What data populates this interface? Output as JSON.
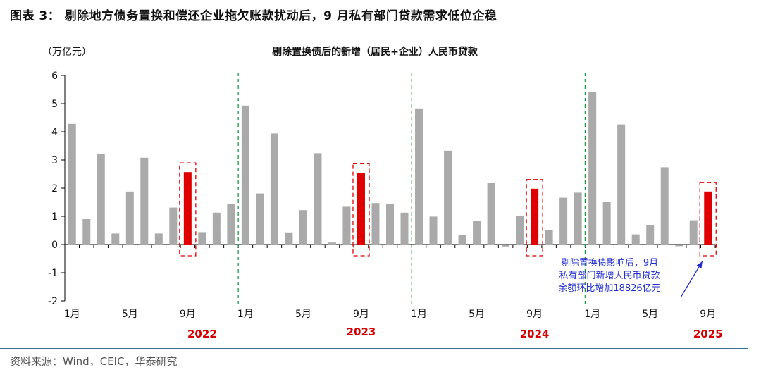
{
  "header": {
    "figure_title": "图表 3：   剔除地方债务置换和偿还企业拖欠账款扰动后，9 月私有部门贷款需求低位企稳"
  },
  "footer": {
    "source": "资料来源：Wind，CEIC，华泰研究"
  },
  "chart_data": {
    "type": "bar",
    "title": "剔除置换债后的新增（居民+企业）人民币贷款",
    "unit_label": "（万亿元）",
    "ylim": [
      -2,
      6
    ],
    "yticks": [
      -2,
      -1,
      0,
      1,
      2,
      3,
      4,
      5,
      6
    ],
    "grid": false,
    "categories": [
      "2022-01",
      "2022-02",
      "2022-03",
      "2022-04",
      "2022-05",
      "2022-06",
      "2022-07",
      "2022-08",
      "2022-09",
      "2022-10",
      "2022-11",
      "2022-12",
      "2023-01",
      "2023-02",
      "2023-03",
      "2023-04",
      "2023-05",
      "2023-06",
      "2023-07",
      "2023-08",
      "2023-09",
      "2023-10",
      "2023-11",
      "2023-12",
      "2024-01",
      "2024-02",
      "2024-03",
      "2024-04",
      "2024-05",
      "2024-06",
      "2024-07",
      "2024-08",
      "2024-09",
      "2024-10",
      "2024-11",
      "2024-12",
      "2025-01",
      "2025-02",
      "2025-03",
      "2025-04",
      "2025-05",
      "2025-06",
      "2025-07",
      "2025-08",
      "2025-09"
    ],
    "values": [
      4.28,
      0.9,
      3.22,
      0.39,
      1.88,
      3.08,
      0.39,
      1.31,
      2.57,
      0.44,
      1.13,
      1.43,
      4.93,
      1.81,
      3.94,
      0.43,
      1.22,
      3.24,
      0.07,
      1.34,
      2.54,
      1.47,
      1.45,
      1.13,
      4.83,
      0.99,
      3.33,
      0.34,
      0.84,
      2.19,
      -0.07,
      1.02,
      1.98,
      0.5,
      1.66,
      1.84,
      5.42,
      1.5,
      4.26,
      0.36,
      0.7,
      2.74,
      -0.06,
      0.86,
      1.88
    ],
    "bar_colors": {
      "normal": "#aaaaaa",
      "highlight": "#e00000"
    },
    "highlight_months": [
      "2022-09",
      "2023-09",
      "2024-09",
      "2025-09"
    ],
    "x_tick_labels": [
      {
        "index": 0,
        "label": "1月"
      },
      {
        "index": 4,
        "label": "5月"
      },
      {
        "index": 8,
        "label": "9月"
      },
      {
        "index": 12,
        "label": "1月"
      },
      {
        "index": 16,
        "label": "5月"
      },
      {
        "index": 20,
        "label": "9月"
      },
      {
        "index": 24,
        "label": "1月"
      },
      {
        "index": 28,
        "label": "5月"
      },
      {
        "index": 32,
        "label": "9月"
      },
      {
        "index": 36,
        "label": "1月"
      },
      {
        "index": 40,
        "label": "5月"
      },
      {
        "index": 44,
        "label": "9月"
      }
    ],
    "year_labels": [
      {
        "index": 9,
        "label": "2022"
      },
      {
        "index": 20,
        "label": "2023"
      },
      {
        "index": 32,
        "label": "2024"
      },
      {
        "index": 44,
        "label": "2025"
      }
    ],
    "year_separator_after": [
      "2022-12",
      "2023-12",
      "2024-12"
    ],
    "year_separator_color": "#1a9c3a",
    "highlight_box_color": "#e00000",
    "annotation": {
      "lines": [
        "剔除置换债影响后，9月",
        "私有部门新增人民币贷款",
        "余额环比增加18826亿元"
      ],
      "color": "#1f2ccc",
      "target": "2025-09"
    }
  }
}
